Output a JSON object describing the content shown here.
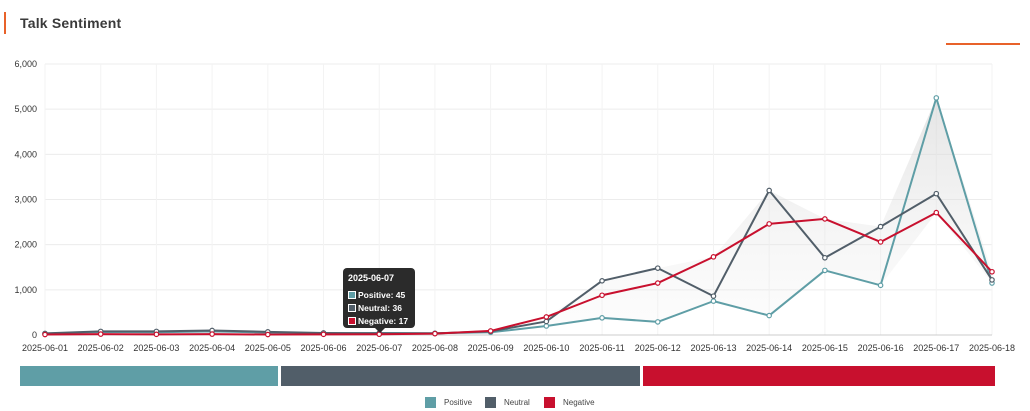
{
  "panel": {
    "title": "Talk Sentiment"
  },
  "colors": {
    "positive": "#5f9ea6",
    "neutral": "#515e69",
    "negative": "#c8102e",
    "accent": "#e8622a"
  },
  "chart_data": {
    "type": "line",
    "x": [
      "2025-06-01",
      "2025-06-02",
      "2025-06-03",
      "2025-06-04",
      "2025-06-05",
      "2025-06-06",
      "2025-06-07",
      "2025-06-08",
      "2025-06-09",
      "2025-06-10",
      "2025-06-11",
      "2025-06-12",
      "2025-06-13",
      "2025-06-14",
      "2025-06-15",
      "2025-06-16",
      "2025-06-17",
      "2025-06-18"
    ],
    "y_ticks": [
      "0",
      "1,000",
      "2,000",
      "3,000",
      "4,000",
      "5,000",
      "6,000"
    ],
    "ylim": [
      0,
      6000
    ],
    "grid": true,
    "legend_position": "bottom",
    "series": [
      {
        "name": "Positive",
        "color": "#5f9ea6",
        "values": [
          30,
          70,
          60,
          80,
          55,
          40,
          45,
          40,
          60,
          200,
          380,
          290,
          750,
          430,
          1430,
          1100,
          5250,
          1150
        ]
      },
      {
        "name": "Neutral",
        "color": "#515e69",
        "values": [
          35,
          80,
          80,
          100,
          70,
          45,
          36,
          35,
          80,
          300,
          1200,
          1480,
          860,
          3200,
          1710,
          2400,
          3130,
          1220
        ]
      },
      {
        "name": "Negative",
        "color": "#c8102e",
        "values": [
          10,
          20,
          15,
          20,
          10,
          15,
          17,
          30,
          90,
          400,
          880,
          1150,
          1730,
          2460,
          2570,
          2060,
          2710,
          1400
        ]
      }
    ],
    "distribution": [
      {
        "name": "Positive",
        "share": 0.2624
      },
      {
        "name": "Neutral",
        "share": 0.3653
      },
      {
        "name": "Negative",
        "share": 0.3581
      }
    ],
    "tooltip": {
      "date": "2025-06-07",
      "rows": [
        {
          "label": "Positive: 45"
        },
        {
          "label": "Neutral: 36"
        },
        {
          "label": "Negative: 17"
        }
      ]
    }
  },
  "legend": [
    {
      "label": "Positive"
    },
    {
      "label": "Neutral"
    },
    {
      "label": "Negative"
    }
  ]
}
